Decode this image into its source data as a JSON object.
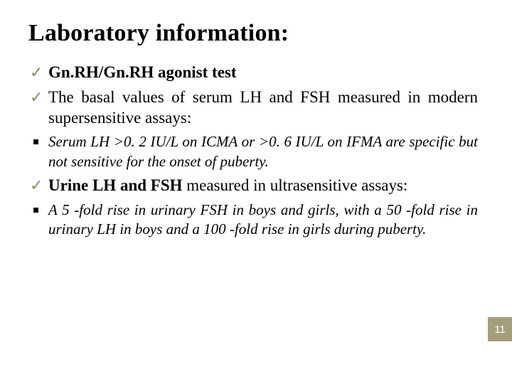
{
  "title": "Laboratory information:",
  "bullets": [
    {
      "type": "check",
      "bold": true,
      "text": "Gn.RH/Gn.RH agonist test"
    },
    {
      "type": "check",
      "bold": false,
      "boldPrefix": "",
      "text": "The basal values of serum LH and FSH measured in modern supersensitive assays:"
    },
    {
      "type": "square",
      "text": "Serum LH >0. 2 IU/L on ICMA or >0. 6 IU/L on IFMA are specific but not sensitive for the onset of puberty."
    },
    {
      "type": "check_mixed",
      "boldPart": "Urine LH and FSH",
      "restPart": " measured in ultrasensitive assays:"
    },
    {
      "type": "square",
      "text": "A 5 -fold rise in urinary FSH in boys and girls, with a 50 -fold rise in urinary LH in boys and a 100 -fold rise in girls during puberty."
    }
  ],
  "pageNumber": "11",
  "colors": {
    "checkmark": "#8c8a63",
    "badgeBg": "#a49e7d",
    "badgeText": "#ffffff",
    "text": "#000000",
    "background": "#ffffff"
  },
  "fonts": {
    "titleSize": 34,
    "checkSize": 23,
    "squareSize": 21,
    "badgeSize": 15
  }
}
